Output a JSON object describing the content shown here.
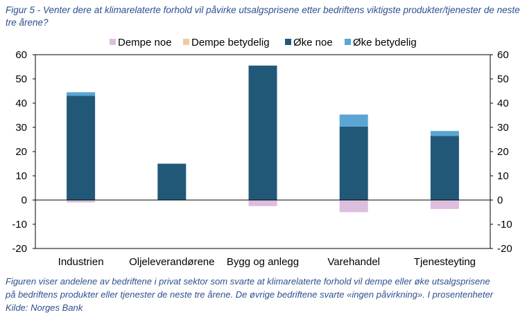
{
  "figure": {
    "title": "Figur 5 - Venter dere at klimarelaterte forhold vil påvirke utsalgsprisene etter bedriftens viktigste produkter/tjenester de neste tre årene?",
    "caption_line1": "Figuren viser andelene av bedriftene i privat sektor som svarte at klimarelaterte forhold vil dempe eller øke utsalgsprisene",
    "caption_line2": "på bedriftens produkter eller tjenester de neste tre årene. De øvrige bedriftene svarte «ingen påvirkning». I prosentenheter",
    "source": "Kilde: Norges Bank"
  },
  "chart_data": {
    "type": "bar",
    "stacked": true,
    "title": "",
    "xlabel": "",
    "ylabel": "",
    "ylim": [
      -20,
      60
    ],
    "yticks": [
      -20,
      -10,
      0,
      10,
      20,
      30,
      40,
      50,
      60
    ],
    "secondary_axis": true,
    "grid": false,
    "legend_position": "top",
    "categories": [
      "Industrien",
      "Oljeleverandørene",
      "Bygg og anlegg",
      "Varehandel",
      "Tjenesteyting"
    ],
    "series": [
      {
        "name": "Dempe noe",
        "color": "#dcbede",
        "values": [
          -1,
          0,
          -2.5,
          -5,
          -3.7
        ]
      },
      {
        "name": "Dempe betydelig",
        "color": "#f0c9a0",
        "values": [
          0,
          0,
          0,
          0,
          0
        ]
      },
      {
        "name": "Øke noe",
        "color": "#225877",
        "values": [
          43,
          15,
          55.5,
          30.3,
          26.5
        ]
      },
      {
        "name": "Øke betydelig",
        "color": "#5aa5d4",
        "values": [
          1.5,
          0,
          0,
          5,
          2
        ]
      }
    ]
  }
}
